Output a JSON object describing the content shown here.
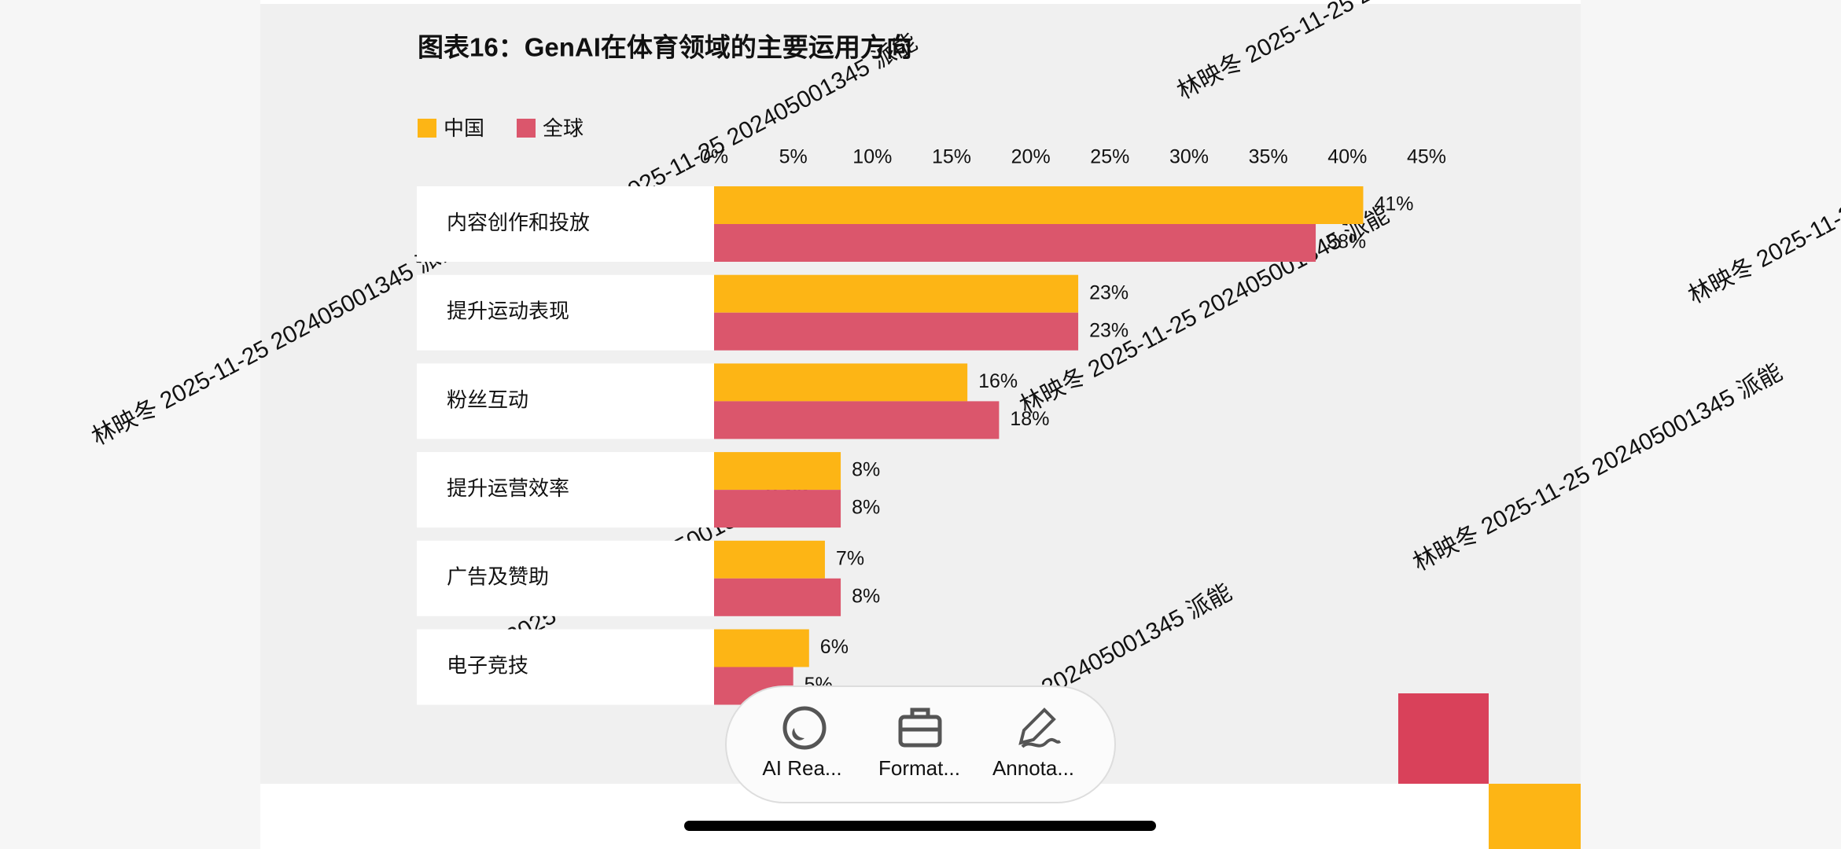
{
  "chart_data": {
    "type": "hbar",
    "title": "图表16：GenAI在体育领域的主要运用方向",
    "categories": [
      "内容创作和投放",
      "提升运动表现",
      "粉丝互动",
      "提升运营效率",
      "广告及赞助",
      "电子竞技"
    ],
    "series": [
      {
        "name": "中国",
        "color": "#fdb515",
        "values": [
          41,
          23,
          16,
          8,
          7,
          6
        ],
        "value_labels": [
          "41%",
          "23%",
          "16%",
          "8%",
          "7%",
          "6%"
        ]
      },
      {
        "name": "全球",
        "color": "#db566c",
        "values": [
          38,
          23,
          18,
          8,
          8,
          5
        ],
        "value_labels": [
          "38%",
          "23%",
          "18%",
          "8%",
          "8%",
          "5%"
        ]
      }
    ],
    "xlim": [
      0,
      45
    ],
    "xticks": [
      {
        "value": 0,
        "label": "0%"
      },
      {
        "value": 5,
        "label": "5%"
      },
      {
        "value": 10,
        "label": "10%"
      },
      {
        "value": 15,
        "label": "15%"
      },
      {
        "value": 20,
        "label": "20%"
      },
      {
        "value": 25,
        "label": "25%"
      },
      {
        "value": 30,
        "label": "30%"
      },
      {
        "value": 35,
        "label": "35%"
      },
      {
        "value": 40,
        "label": "40%"
      },
      {
        "value": 45,
        "label": "45%"
      }
    ],
    "legend": "top-left"
  },
  "watermark": "林映冬 2025-11-25 202405001345 派能",
  "toolbar": {
    "items": [
      "AI Rea...",
      "Format...",
      "Annota..."
    ]
  }
}
